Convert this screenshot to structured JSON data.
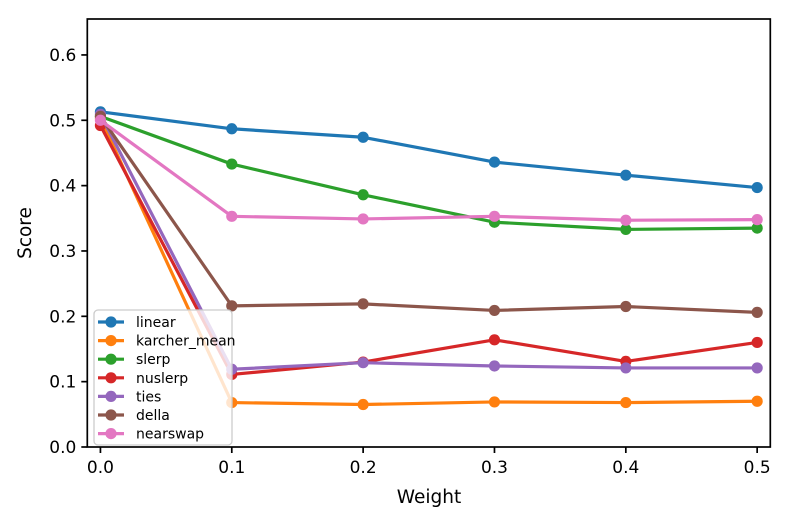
{
  "chart_data": {
    "type": "line",
    "title": "",
    "xlabel": "Weight",
    "ylabel": "Score",
    "x": [
      0.0,
      0.1,
      0.2,
      0.3,
      0.4,
      0.5
    ],
    "x_tick_labels": [
      "0.0",
      "0.1",
      "0.2",
      "0.3",
      "0.4",
      "0.5"
    ],
    "y_tick_labels": [
      "0.0",
      "0.1",
      "0.2",
      "0.3",
      "0.4",
      "0.5",
      "0.6"
    ],
    "xlim": [
      -0.01,
      0.51
    ],
    "ylim": [
      0,
      0.655
    ],
    "grid": false,
    "marker": "circle",
    "background": "#ffffff",
    "frame_color": "#000000",
    "legend": {
      "position": "lower-left",
      "frame_color": "#cccccc",
      "entries": [
        "linear",
        "karcher_mean",
        "slerp",
        "nuslerp",
        "ties",
        "della",
        "nearswap"
      ]
    },
    "series": [
      {
        "name": "linear",
        "color": "#1f77b4",
        "values": [
          0.513,
          0.487,
          0.474,
          0.436,
          0.416,
          0.397
        ]
      },
      {
        "name": "karcher_mean",
        "color": "#ff7f0e",
        "values": [
          0.503,
          0.068,
          0.065,
          0.069,
          0.068,
          0.07
        ]
      },
      {
        "name": "slerp",
        "color": "#2ca02c",
        "values": [
          0.506,
          0.433,
          0.386,
          0.344,
          0.333,
          0.335
        ]
      },
      {
        "name": "nuslerp",
        "color": "#d62728",
        "values": [
          0.492,
          0.111,
          0.13,
          0.164,
          0.131,
          0.16
        ]
      },
      {
        "name": "ties",
        "color": "#9467bd",
        "values": [
          0.509,
          0.119,
          0.129,
          0.124,
          0.121,
          0.121
        ]
      },
      {
        "name": "della",
        "color": "#8c564b",
        "values": [
          0.506,
          0.216,
          0.219,
          0.209,
          0.215,
          0.206
        ]
      },
      {
        "name": "nearswap",
        "color": "#e377c2",
        "values": [
          0.5,
          0.353,
          0.349,
          0.353,
          0.347,
          0.348
        ]
      }
    ]
  }
}
